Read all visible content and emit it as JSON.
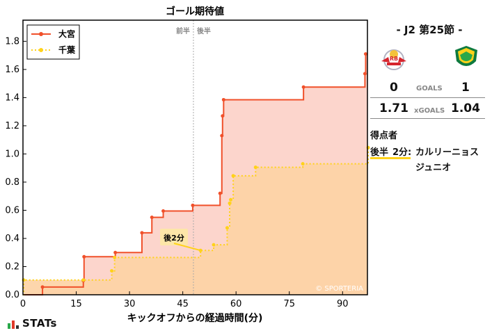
{
  "chart_data": {
    "type": "line",
    "title": "ゴール期待値",
    "xlabel": "キックオフからの経過時間(分)",
    "ylabel": "",
    "xlim": [
      0,
      97
    ],
    "ylim": [
      0,
      1.95
    ],
    "xticks": [
      0,
      15,
      30,
      45,
      60,
      75,
      90
    ],
    "yticks": [
      0.0,
      0.2,
      0.4,
      0.6,
      0.8,
      1.0,
      1.2,
      1.4,
      1.6,
      1.8
    ],
    "halftime_minute": 48,
    "halftime_labels": [
      "前半",
      "後半"
    ],
    "legend": "top-left",
    "grid": false,
    "watermark": "© SPORTERIA",
    "series": [
      {
        "name": "大宮",
        "color": "#f0502a",
        "fill": "#fcd5cc",
        "style": "solid",
        "x": [
          0,
          5.5,
          17,
          17.2,
          26,
          33.5,
          36.3,
          39.5,
          47.8,
          55.5,
          56,
          56.2,
          56.5,
          79,
          96.3,
          96.5,
          97
        ],
        "y": [
          0,
          0.055,
          0.1,
          0.27,
          0.3,
          0.44,
          0.55,
          0.595,
          0.635,
          0.72,
          1.13,
          1.27,
          1.385,
          1.475,
          1.57,
          1.71,
          1.71
        ]
      },
      {
        "name": "千葉",
        "color": "#ffd21a",
        "fill": "#fdd3a5",
        "style": "dotted",
        "x": [
          0,
          0.2,
          17,
          25,
          25.8,
          50,
          53.7,
          57.5,
          58.2,
          58.5,
          59.2,
          65.5,
          78.8,
          97.2,
          97
        ],
        "y": [
          0,
          0.105,
          0.105,
          0.17,
          0.265,
          0.315,
          0.355,
          0.475,
          0.65,
          0.675,
          0.845,
          0.905,
          0.93,
          1.045,
          1.045
        ]
      }
    ],
    "annotations": [
      {
        "text": "後2分",
        "x": 50,
        "y": 0.315
      }
    ]
  },
  "panel": {
    "title": "-  J2 第25節  -",
    "home_logo_text": "RB",
    "home_goals": "0",
    "away_goals": "1",
    "goals_label": "GOALS",
    "home_xg": "1.71",
    "away_xg": "1.04",
    "xg_label": "xGOALS",
    "scorers_title": "得点者",
    "scorer_half": "後半",
    "scorer_minute": "2分:",
    "scorer_name_line1": "カルリーニョス",
    "scorer_name_line2": "ジュニオ"
  },
  "footer": {
    "brand": "STATs"
  }
}
